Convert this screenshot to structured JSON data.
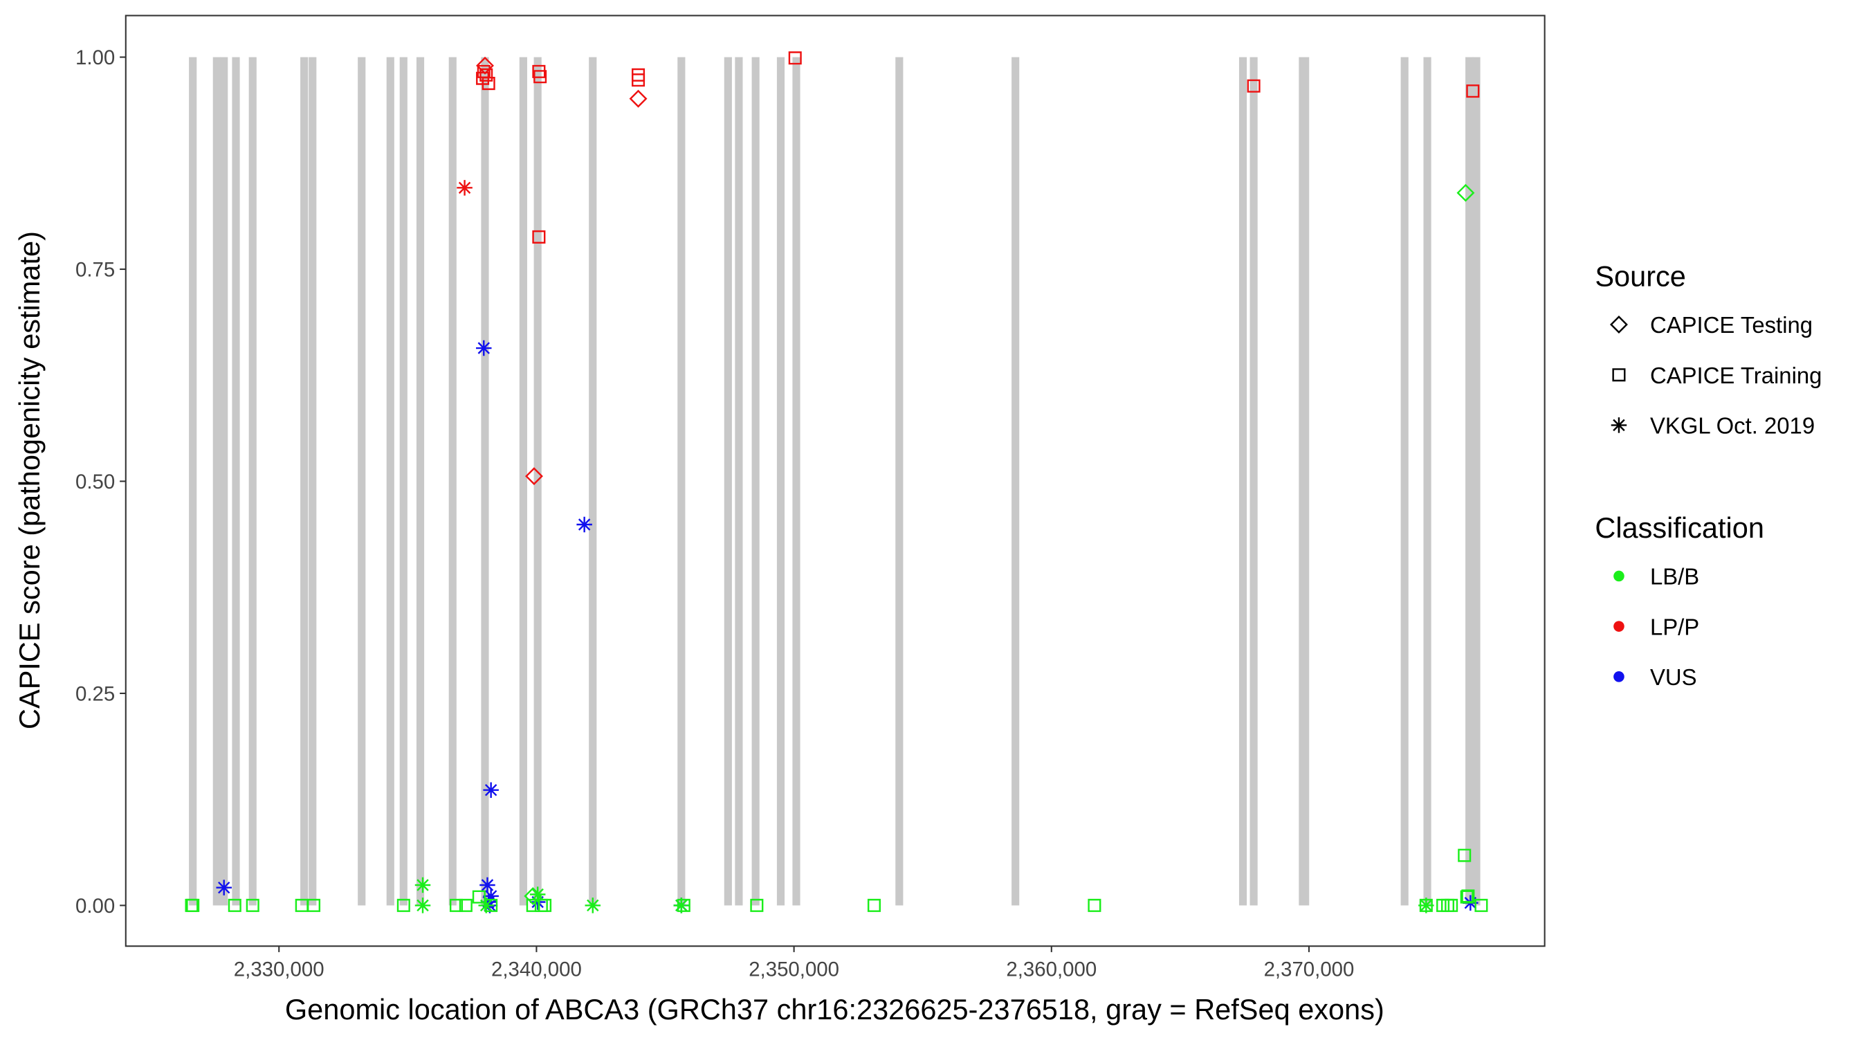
{
  "chart_data": {
    "type": "scatter",
    "xlabel": "Genomic location of ABCA3 (GRCh37 chr16:2326625-2376518, gray = RefSeq exons)",
    "ylabel": "CAPICE score (pathogenicity estimate)",
    "xlim": [
      2324050,
      2379153
    ],
    "ylim": [
      -0.048,
      1.049
    ],
    "xticks": [
      {
        "value": 2330000,
        "label": "2,330,000"
      },
      {
        "value": 2340000,
        "label": "2,340,000"
      },
      {
        "value": 2350000,
        "label": "2,350,000"
      },
      {
        "value": 2360000,
        "label": "2,360,000"
      },
      {
        "value": 2370000,
        "label": "2,370,000"
      }
    ],
    "yticks": [
      {
        "value": 0,
        "label": "0.00"
      },
      {
        "value": 0.25,
        "label": "0.25"
      },
      {
        "value": 0.5,
        "label": "0.50"
      },
      {
        "value": 0.75,
        "label": "0.75"
      },
      {
        "value": 1,
        "label": "1.00"
      }
    ],
    "exon_color": "#c8c8c8",
    "exons": [
      [
        2326504,
        2326804
      ],
      [
        2327434,
        2327734
      ],
      [
        2327713,
        2328013
      ],
      [
        2328178,
        2328478
      ],
      [
        2328829,
        2329129
      ],
      [
        2330829,
        2331129
      ],
      [
        2331154,
        2331454
      ],
      [
        2333061,
        2333361
      ],
      [
        2334177,
        2334477
      ],
      [
        2334688,
        2334988
      ],
      [
        2335339,
        2335639
      ],
      [
        2336595,
        2336895
      ],
      [
        2337850,
        2338150
      ],
      [
        2339338,
        2339638
      ],
      [
        2339897,
        2340197
      ],
      [
        2342036,
        2342336
      ],
      [
        2345477,
        2345777
      ],
      [
        2347290,
        2347590
      ],
      [
        2347709,
        2348009
      ],
      [
        2348360,
        2348660
      ],
      [
        2349336,
        2349636
      ],
      [
        2349941,
        2350241
      ],
      [
        2353940,
        2354240
      ],
      [
        2358450,
        2358750
      ],
      [
        2367285,
        2367585
      ],
      [
        2367704,
        2368004
      ],
      [
        2369607,
        2370007
      ],
      [
        2373563,
        2373863
      ],
      [
        2374446,
        2374746
      ],
      [
        2376074,
        2376374
      ],
      [
        2376353,
        2376653
      ]
    ],
    "legends": [
      {
        "title": "Source",
        "entries": [
          {
            "name": "CAPICE Testing",
            "shape": "diamond"
          },
          {
            "name": "CAPICE Training",
            "shape": "square"
          },
          {
            "name": "VKGL Oct. 2019",
            "shape": "star"
          }
        ]
      },
      {
        "title": "Classification",
        "entries": [
          {
            "name": "LB/B",
            "color": "#1aee1a"
          },
          {
            "name": "LP/P",
            "color": "#ee1111"
          },
          {
            "name": "VUS",
            "color": "#1111ee"
          }
        ]
      }
    ],
    "x": [
      2338001,
      2337954,
      2337908,
      2338140,
      2338047,
      2340093,
      2340140,
      2343953,
      2343953,
      2350044,
      2367854,
      2376363,
      2340093,
      2343953,
      2337210,
      2339907,
      2327864,
      2337954,
      2341860,
      2338233,
      2338094,
      2338233,
      2338140,
      2340047,
      2345627,
      2376270,
      2338187,
      2326608,
      2326654,
      2328282,
      2328979,
      2330886,
      2331351,
      2334839,
      2336885,
      2337257,
      2337768,
      2338233,
      2339861,
      2340186,
      2340326,
      2345720,
      2348556,
      2353113,
      2361669,
      2374550,
      2375201,
      2375387,
      2375526,
      2376131,
      2376689,
      2376038,
      2376177,
      2376084,
      2339861,
      2335583,
      2335583,
      2340047,
      2342186,
      2338047,
      2345627,
      2374550
    ],
    "y": [
      0.99,
      0.983,
      0.975,
      0.969,
      0.979,
      0.983,
      0.977,
      0.979,
      0.973,
      0.999,
      0.966,
      0.96,
      0.788,
      0.951,
      0.846,
      0.506,
      0.021,
      0.657,
      0.449,
      0.136,
      0.024,
      0.011,
      0.004,
      0.004,
      0,
      0.003,
      0,
      0,
      0,
      0,
      0,
      0,
      0,
      0,
      0,
      0,
      0.01,
      0,
      0,
      0,
      0,
      0,
      0,
      0,
      0,
      0,
      0,
      0,
      0,
      0.01,
      0,
      0.059,
      0.011,
      0.84,
      0.011,
      0.024,
      0,
      0.013,
      0,
      0,
      0,
      0
    ],
    "source": [
      "CAPICE Testing",
      "CAPICE Training",
      "CAPICE Training",
      "CAPICE Training",
      "CAPICE Training",
      "CAPICE Training",
      "CAPICE Training",
      "CAPICE Training",
      "CAPICE Training",
      "CAPICE Training",
      "CAPICE Training",
      "CAPICE Training",
      "CAPICE Training",
      "CAPICE Testing",
      "VKGL Oct. 2019",
      "CAPICE Testing",
      "VKGL Oct. 2019",
      "VKGL Oct. 2019",
      "VKGL Oct. 2019",
      "VKGL Oct. 2019",
      "VKGL Oct. 2019",
      "VKGL Oct. 2019",
      "VKGL Oct. 2019",
      "VKGL Oct. 2019",
      "VKGL Oct. 2019",
      "VKGL Oct. 2019",
      "VKGL Oct. 2019",
      "CAPICE Training",
      "CAPICE Training",
      "CAPICE Training",
      "CAPICE Training",
      "CAPICE Training",
      "CAPICE Training",
      "CAPICE Training",
      "CAPICE Training",
      "CAPICE Training",
      "CAPICE Training",
      "CAPICE Training",
      "CAPICE Training",
      "CAPICE Training",
      "CAPICE Training",
      "CAPICE Training",
      "CAPICE Training",
      "CAPICE Training",
      "CAPICE Training",
      "CAPICE Training",
      "CAPICE Training",
      "CAPICE Training",
      "CAPICE Training",
      "CAPICE Training",
      "CAPICE Training",
      "CAPICE Training",
      "CAPICE Training",
      "CAPICE Testing",
      "CAPICE Testing",
      "VKGL Oct. 2019",
      "VKGL Oct. 2019",
      "VKGL Oct. 2019",
      "VKGL Oct. 2019",
      "VKGL Oct. 2019",
      "VKGL Oct. 2019",
      "VKGL Oct. 2019"
    ],
    "classification": [
      "LP/P",
      "LP/P",
      "LP/P",
      "LP/P",
      "LP/P",
      "LP/P",
      "LP/P",
      "LP/P",
      "LP/P",
      "LP/P",
      "LP/P",
      "LP/P",
      "LP/P",
      "LP/P",
      "LP/P",
      "LP/P",
      "VUS",
      "VUS",
      "VUS",
      "VUS",
      "VUS",
      "VUS",
      "VUS",
      "VUS",
      "VUS",
      "VUS",
      "VUS",
      "LB/B",
      "LB/B",
      "LB/B",
      "LB/B",
      "LB/B",
      "LB/B",
      "LB/B",
      "LB/B",
      "LB/B",
      "LB/B",
      "LB/B",
      "LB/B",
      "LB/B",
      "LB/B",
      "LB/B",
      "LB/B",
      "LB/B",
      "LB/B",
      "LB/B",
      "LB/B",
      "LB/B",
      "LB/B",
      "LB/B",
      "LB/B",
      "LB/B",
      "LB/B",
      "LB/B",
      "LB/B",
      "LB/B",
      "LB/B",
      "LB/B",
      "LB/B",
      "LB/B",
      "LB/B",
      "LB/B"
    ]
  }
}
